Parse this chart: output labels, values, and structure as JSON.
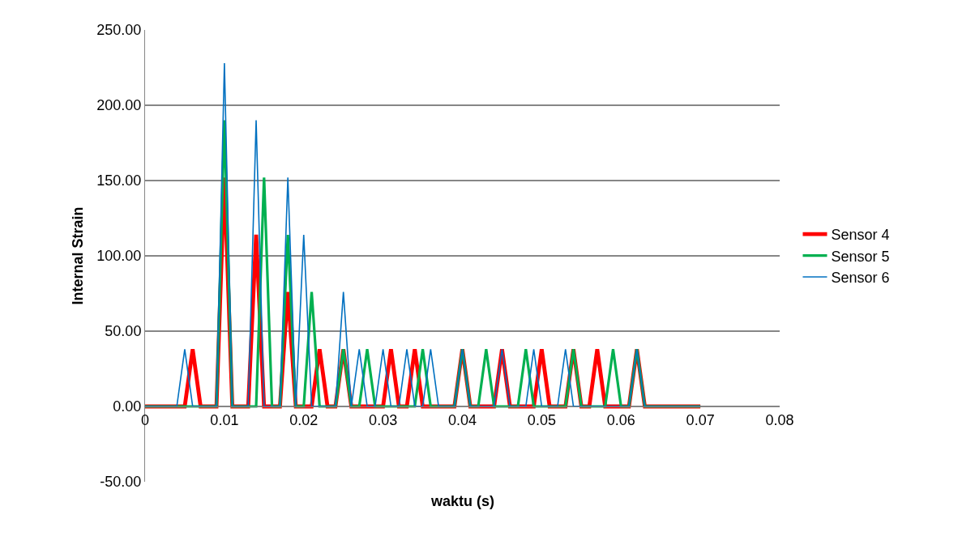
{
  "chart_data": {
    "type": "line",
    "xlabel": "waktu (s)",
    "ylabel": "Internal Strain",
    "xlim": [
      0,
      0.08
    ],
    "xticks": [
      {
        "value": 0,
        "label": "0"
      },
      0.01,
      0.02,
      0.03,
      0.04,
      0.05,
      0.06,
      0.07,
      0.08
    ],
    "ylim": [
      -50,
      250
    ],
    "yticks": [
      {
        "value": -50,
        "label": "-50.00"
      },
      {
        "value": 0,
        "label": "0.00"
      },
      {
        "value": 50,
        "label": "50.00"
      },
      {
        "value": 100,
        "label": "100.00"
      },
      {
        "value": 150,
        "label": "150.00"
      },
      {
        "value": 200,
        "label": "200.00"
      },
      {
        "value": 250,
        "label": "250.00"
      }
    ],
    "grid": "y",
    "legend": "right",
    "marker": "none",
    "line_style": "solid",
    "series": [
      {
        "name": "Sensor 4",
        "color": "#ff0000",
        "x": [
          0,
          0.005,
          0.0055,
          0.006,
          0.0065,
          0.007,
          0.009,
          0.0095,
          0.01,
          0.0105,
          0.011,
          0.013,
          0.0135,
          0.014,
          0.0145,
          0.015,
          0.017,
          0.0175,
          0.018,
          0.0185,
          0.019,
          0.021,
          0.0215,
          0.022,
          0.0225,
          0.023,
          0.024,
          0.0245,
          0.025,
          0.0255,
          0.026,
          0.03,
          0.0305,
          0.031,
          0.0315,
          0.032,
          0.033,
          0.0335,
          0.034,
          0.0345,
          0.035,
          0.039,
          0.0395,
          0.04,
          0.0405,
          0.041,
          0.044,
          0.0445,
          0.045,
          0.0455,
          0.046,
          0.049,
          0.0495,
          0.05,
          0.0505,
          0.051,
          0.053,
          0.0535,
          0.054,
          0.0545,
          0.055,
          0.056,
          0.0565,
          0.057,
          0.0575,
          0.058,
          0.061,
          0.0615,
          0.062,
          0.0625,
          0.063,
          0.07
        ],
        "values": [
          0,
          0,
          19,
          38,
          19,
          0,
          0,
          76,
          152,
          76,
          0,
          0,
          57,
          114,
          57,
          0,
          0,
          38,
          76,
          38,
          0,
          0,
          19,
          38,
          19,
          0,
          0,
          19,
          38,
          19,
          0,
          0,
          19,
          38,
          19,
          0,
          0,
          19,
          38,
          19,
          0,
          0,
          19,
          38,
          19,
          0,
          0,
          19,
          38,
          19,
          0,
          0,
          19,
          38,
          19,
          0,
          0,
          19,
          38,
          19,
          0,
          0,
          19,
          38,
          19,
          0,
          0,
          19,
          38,
          19,
          0,
          0
        ]
      },
      {
        "name": "Sensor 5",
        "color": "#00b050",
        "x": [
          0,
          0.009,
          0.0095,
          0.01,
          0.0105,
          0.011,
          0.014,
          0.0145,
          0.015,
          0.0155,
          0.016,
          0.017,
          0.0175,
          0.018,
          0.0185,
          0.019,
          0.02,
          0.0205,
          0.021,
          0.0215,
          0.022,
          0.024,
          0.0245,
          0.025,
          0.0255,
          0.026,
          0.027,
          0.0275,
          0.028,
          0.0285,
          0.029,
          0.034,
          0.0345,
          0.035,
          0.0355,
          0.036,
          0.039,
          0.0395,
          0.04,
          0.0405,
          0.041,
          0.042,
          0.0425,
          0.043,
          0.0435,
          0.044,
          0.047,
          0.0475,
          0.048,
          0.0485,
          0.049,
          0.053,
          0.0535,
          0.054,
          0.0545,
          0.055,
          0.058,
          0.0585,
          0.059,
          0.0595,
          0.06,
          0.061,
          0.0615,
          0.062,
          0.0625,
          0.063,
          0.07
        ],
        "values": [
          0,
          0,
          95,
          190,
          95,
          0,
          0,
          76,
          152,
          76,
          0,
          0,
          57,
          114,
          57,
          0,
          0,
          38,
          76,
          38,
          0,
          0,
          19,
          38,
          19,
          0,
          0,
          19,
          38,
          19,
          0,
          0,
          19,
          38,
          19,
          0,
          0,
          19,
          38,
          19,
          0,
          0,
          19,
          38,
          19,
          0,
          0,
          19,
          38,
          19,
          0,
          0,
          19,
          38,
          19,
          0,
          0,
          19,
          38,
          19,
          0,
          0,
          19,
          38,
          19,
          0,
          0
        ]
      },
      {
        "name": "Sensor 6",
        "color": "#0070c0",
        "x": [
          0,
          0.004,
          0.0045,
          0.005,
          0.0055,
          0.006,
          0.009,
          0.0095,
          0.01,
          0.0105,
          0.011,
          0.013,
          0.0135,
          0.014,
          0.0145,
          0.015,
          0.017,
          0.0175,
          0.018,
          0.0185,
          0.019,
          0.0195,
          0.02,
          0.0205,
          0.021,
          0.024,
          0.0245,
          0.025,
          0.0255,
          0.026,
          0.0265,
          0.027,
          0.0275,
          0.028,
          0.029,
          0.0295,
          0.03,
          0.0305,
          0.031,
          0.032,
          0.0325,
          0.033,
          0.0335,
          0.034,
          0.035,
          0.0355,
          0.036,
          0.0365,
          0.037,
          0.039,
          0.0395,
          0.04,
          0.0405,
          0.041,
          0.044,
          0.0445,
          0.045,
          0.0455,
          0.046,
          0.048,
          0.0485,
          0.049,
          0.0495,
          0.05,
          0.052,
          0.0525,
          0.053,
          0.0535,
          0.054,
          0.061,
          0.0615,
          0.062,
          0.0625,
          0.063,
          0.07
        ],
        "values": [
          0,
          0,
          19,
          38,
          19,
          0,
          0,
          114,
          228,
          114,
          0,
          0,
          95,
          190,
          95,
          0,
          0,
          76,
          152,
          76,
          0,
          57,
          114,
          57,
          0,
          0,
          38,
          76,
          38,
          0,
          19,
          38,
          19,
          0,
          0,
          19,
          38,
          19,
          0,
          0,
          19,
          38,
          19,
          0,
          0,
          19,
          38,
          19,
          0,
          0,
          19,
          38,
          19,
          0,
          0,
          19,
          38,
          19,
          0,
          0,
          19,
          38,
          19,
          0,
          0,
          19,
          38,
          19,
          0,
          0,
          19,
          38,
          19,
          0,
          0
        ]
      }
    ]
  }
}
